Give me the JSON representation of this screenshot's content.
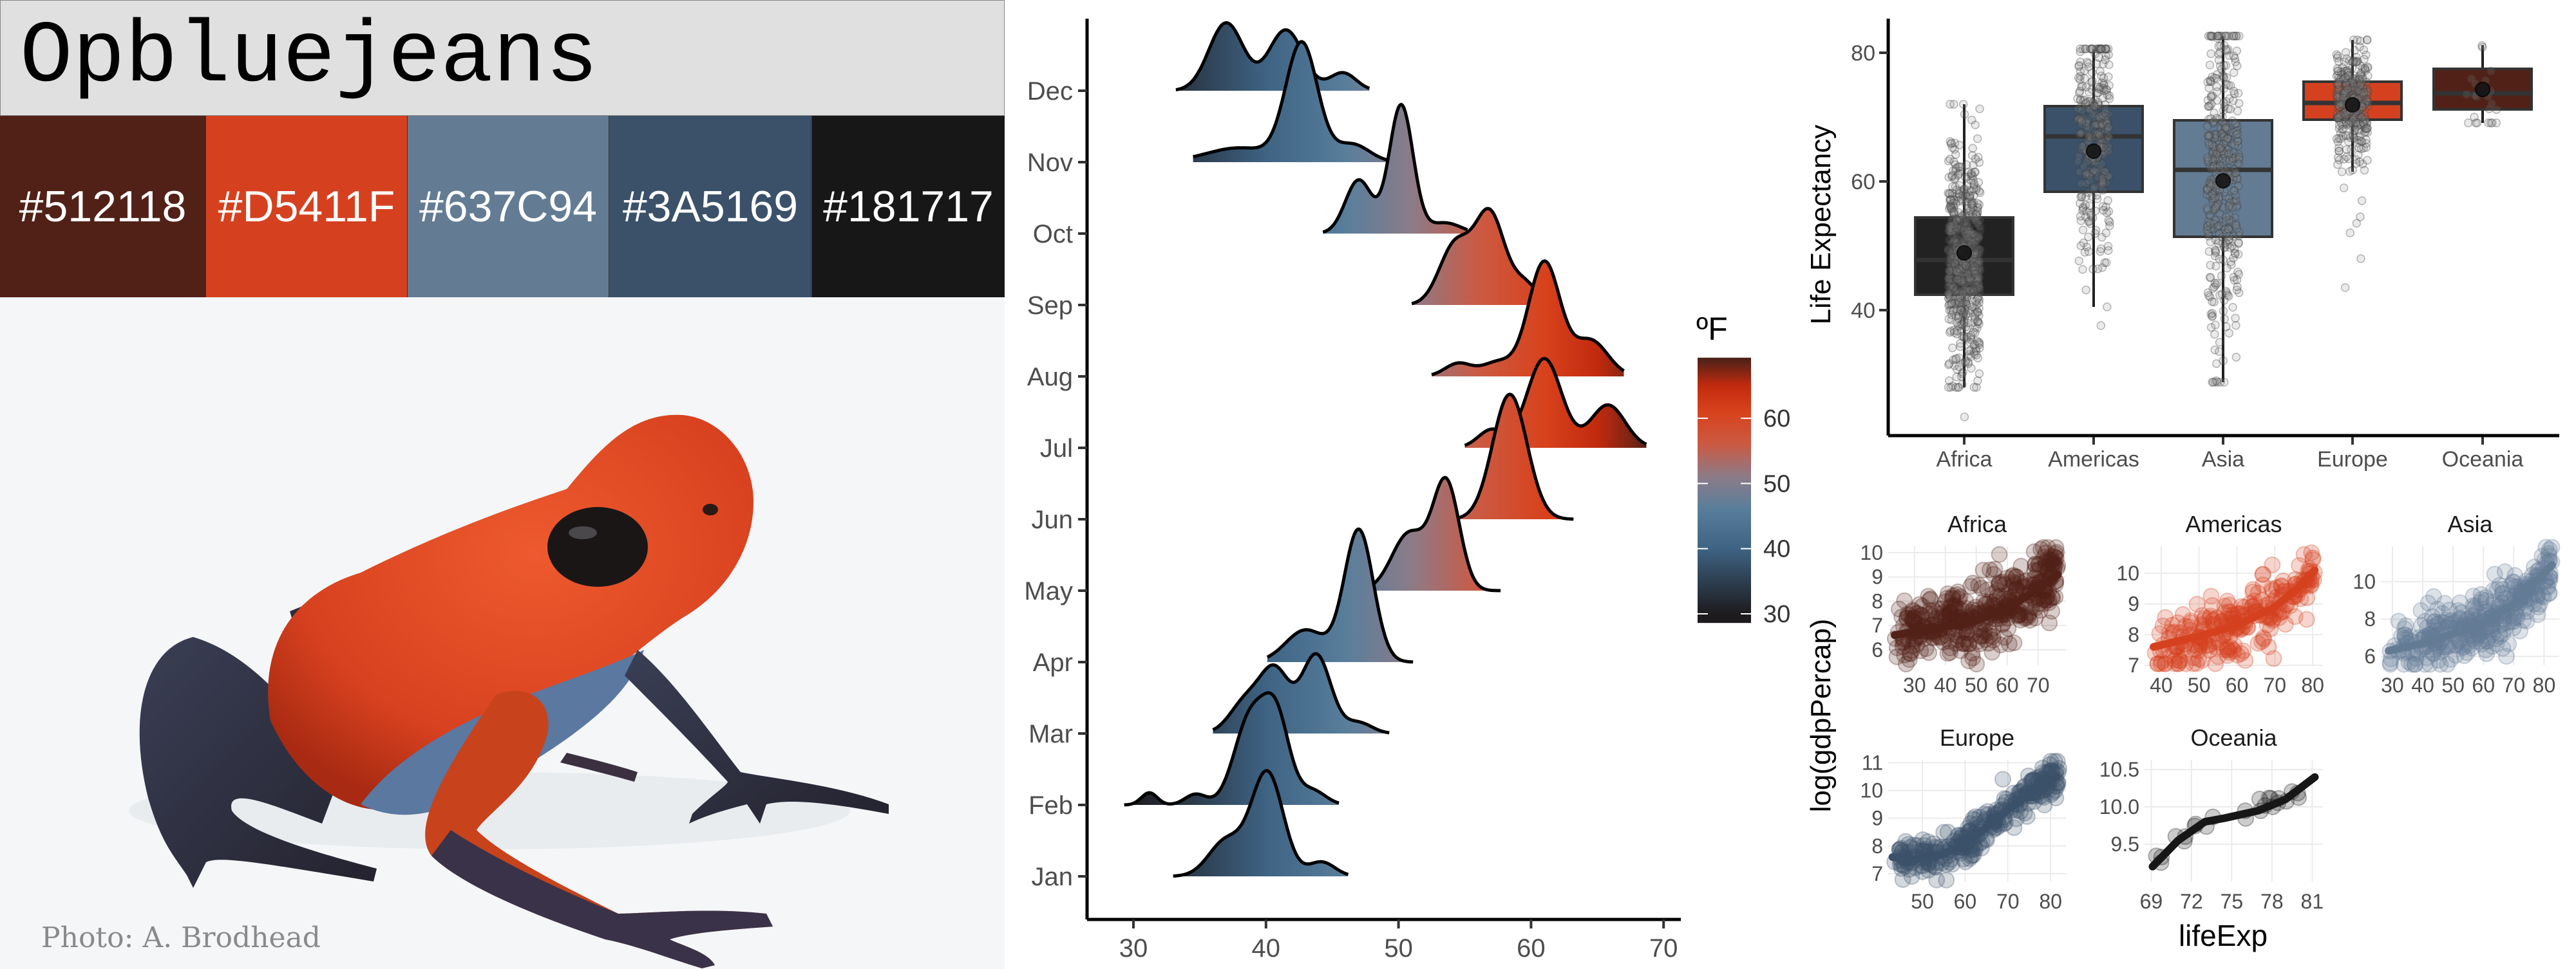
{
  "palette": {
    "title": "Opbluejeans",
    "swatches": [
      {
        "hex": "#512118",
        "label": "#512118"
      },
      {
        "hex": "#D5411F",
        "label": "#D5411F"
      },
      {
        "hex": "#637C94",
        "label": "#637C94"
      },
      {
        "hex": "#3A5169",
        "label": "#3A5169"
      },
      {
        "hex": "#181717",
        "label": "#181717"
      }
    ],
    "photo_caption": "Photo: A. Brodhead"
  },
  "chart_data": [
    {
      "type": "ridgeline",
      "title": "",
      "xlabel": "",
      "ylabel": "",
      "xlim": [
        26.5,
        71.3
      ],
      "x_ticks": [
        "30",
        "40",
        "50",
        "60",
        "70"
      ],
      "x_tick_values": [
        30,
        40,
        50,
        60,
        70
      ],
      "categories": [
        "Jan",
        "Feb",
        "Mar",
        "Apr",
        "May",
        "Jun",
        "Jul",
        "Aug",
        "Sep",
        "Oct",
        "Nov",
        "Dec"
      ],
      "series": [
        {
          "name": "Jan",
          "range": [
            33,
            46.2
          ],
          "components": [
            [
              37,
              1.3,
              0.5
            ],
            [
              40.1,
              1.2,
              1.45
            ],
            [
              44.2,
              1.0,
              0.2
            ]
          ]
        },
        {
          "name": "Feb",
          "range": [
            29.3,
            45.5
          ],
          "components": [
            [
              31.2,
              0.6,
              0.17
            ],
            [
              34.7,
              0.8,
              0.15
            ],
            [
              38.8,
              1.2,
              1.2
            ],
            [
              40.8,
              1.0,
              1.15
            ],
            [
              43.5,
              1.0,
              0.2
            ]
          ]
        },
        {
          "name": "Mar",
          "range": [
            36,
            49.3
          ],
          "components": [
            [
              38.5,
              1.2,
              0.45
            ],
            [
              40.7,
              1.1,
              0.85
            ],
            [
              43.8,
              1.1,
              1.1
            ],
            [
              47,
              1.0,
              0.15
            ]
          ]
        },
        {
          "name": "Apr",
          "range": [
            40.1,
            51.1
          ],
          "components": [
            [
              43,
              1.5,
              0.45
            ],
            [
              47,
              1.1,
              1.85
            ]
          ]
        },
        {
          "name": "May",
          "range": [
            47.5,
            57.7
          ],
          "components": [
            [
              50.8,
              1.3,
              0.8
            ],
            [
              53.6,
              1.0,
              1.5
            ]
          ]
        },
        {
          "name": "Jun",
          "range": [
            54.6,
            63.2
          ],
          "components": [
            [
              58.4,
              1.3,
              1.75
            ]
          ]
        },
        {
          "name": "Jul",
          "range": [
            55,
            68.7
          ],
          "components": [
            [
              57,
              1.0,
              0.25
            ],
            [
              61,
              1.3,
              1.25
            ],
            [
              65.8,
              1.3,
              0.6
            ]
          ]
        },
        {
          "name": "Aug",
          "range": [
            52.5,
            67
          ],
          "components": [
            [
              54.5,
              1.0,
              0.18
            ],
            [
              57.5,
              1.2,
              0.2
            ],
            [
              61,
              1.2,
              1.6
            ],
            [
              64.5,
              1.3,
              0.5
            ]
          ]
        },
        {
          "name": "Sep",
          "range": [
            51,
            61
          ],
          "components": [
            [
              54.3,
              1.2,
              0.85
            ],
            [
              56.9,
              1.1,
              1.25
            ],
            [
              59.5,
              1.0,
              0.3
            ]
          ]
        },
        {
          "name": "Oct",
          "range": [
            44.3,
            55.2
          ],
          "components": [
            [
              47,
              1.0,
              0.75
            ],
            [
              50.2,
              0.9,
              1.8
            ],
            [
              53.5,
              1.2,
              0.15
            ]
          ]
        },
        {
          "name": "Nov",
          "range": [
            34.5,
            49.5
          ],
          "components": [
            [
              38,
              2.5,
              0.2
            ],
            [
              42.7,
              1.2,
              1.65
            ],
            [
              46.5,
              1.3,
              0.25
            ]
          ]
        },
        {
          "name": "Dec",
          "range": [
            33.2,
            47.8
          ],
          "components": [
            [
              37,
              1.3,
              0.95
            ],
            [
              41.5,
              1.3,
              0.85
            ],
            [
              45.8,
              1.0,
              0.25
            ]
          ]
        }
      ],
      "legend": {
        "title": "ºF",
        "position": "right",
        "ticks": [
          "30",
          "40",
          "50",
          "60"
        ],
        "tick_values": [
          30,
          40,
          50,
          60
        ],
        "range": [
          28.6,
          69.3
        ],
        "gradient": [
          [
            30,
            "#1d1b1e"
          ],
          [
            40,
            "#3e6383"
          ],
          [
            46,
            "#587e9c"
          ],
          [
            51,
            "#8c7b88"
          ],
          [
            56,
            "#cb5a43"
          ],
          [
            61,
            "#d8421c"
          ],
          [
            65,
            "#c22a0e"
          ],
          [
            69,
            "#512118"
          ]
        ]
      }
    },
    {
      "type": "boxplot",
      "ylabel": "Life Expectancy",
      "xlabel": "",
      "ylim": [
        20.5,
        85.3
      ],
      "y_ticks": [
        "40",
        "60",
        "80"
      ],
      "y_tick_values": [
        40,
        60,
        80
      ],
      "categories": [
        "Africa",
        "Americas",
        "Asia",
        "Europe",
        "Oceania"
      ],
      "series": [
        {
          "name": "Africa",
          "fill": "#222222",
          "q1": 42.4,
          "median": 47.8,
          "q3": 54.4,
          "whisker_low": 28,
          "whisker_high": 72,
          "mean": 48.9,
          "outliers": [
            23.4
          ],
          "n": 624
        },
        {
          "name": "Americas",
          "fill": "#3A5169",
          "q1": 58.4,
          "median": 67.0,
          "q3": 71.7,
          "whisker_low": 40.5,
          "whisker_high": 80.6,
          "mean": 64.7,
          "outliers": [
            37.6
          ],
          "n": 300
        },
        {
          "name": "Asia",
          "fill": "#637C94",
          "q1": 51.4,
          "median": 61.8,
          "q3": 69.5,
          "whisker_low": 28.8,
          "whisker_high": 82.6,
          "mean": 60.1,
          "outliers": [],
          "n": 396
        },
        {
          "name": "Europe",
          "fill": "#D5411F",
          "q1": 69.6,
          "median": 72.2,
          "q3": 75.5,
          "whisker_low": 61.5,
          "whisker_high": 82,
          "mean": 71.9,
          "outliers": [
            59,
            57,
            54.5,
            53.5,
            52,
            48,
            43.5
          ],
          "n": 360
        },
        {
          "name": "Oceania",
          "fill": "#512118",
          "q1": 71.2,
          "median": 73.7,
          "q3": 77.5,
          "whisker_low": 69.1,
          "whisker_high": 81.2,
          "mean": 74.3,
          "outliers": [],
          "n": 24
        }
      ]
    },
    {
      "type": "scatter",
      "facets": true,
      "ylabel": "log(gdpPercap)",
      "xlabel": "lifeExp",
      "panels": [
        {
          "title": "Africa",
          "color": "#512118",
          "xlim": [
            21.5,
            79
          ],
          "ylim": [
            5.36,
            10.26
          ],
          "x_ticks": [
            "30",
            "40",
            "50",
            "60",
            "70"
          ],
          "x_tick_values": [
            30,
            40,
            50,
            60,
            70
          ],
          "y_ticks": [
            "6",
            "7",
            "8",
            "9",
            "10"
          ],
          "y_tick_values": [
            6,
            7,
            8,
            9,
            10
          ],
          "x_range": [
            23.6,
            76.4
          ],
          "spread": 0.75,
          "n": 420,
          "smooth": [
            [
              23.6,
              6.6
            ],
            [
              35,
              6.85
            ],
            [
              45,
              7.05
            ],
            [
              50,
              7.2
            ],
            [
              60,
              7.7
            ],
            [
              70,
              8.5
            ],
            [
              76.4,
              9.1
            ]
          ]
        },
        {
          "title": "Americas",
          "color": "#D5411F",
          "xlim": [
            35.6,
            82.7
          ],
          "ylim": [
            7,
            10.88
          ],
          "x_ticks": [
            "40",
            "50",
            "60",
            "70",
            "80"
          ],
          "x_tick_values": [
            40,
            50,
            60,
            70,
            80
          ],
          "y_ticks": [
            "7",
            "8",
            "9",
            "10"
          ],
          "y_tick_values": [
            7,
            8,
            9,
            10
          ],
          "x_range": [
            38,
            80.6
          ],
          "spread": 0.5,
          "n": 260,
          "smooth": [
            [
              38,
              7.6
            ],
            [
              50,
              7.95
            ],
            [
              60,
              8.3
            ],
            [
              70,
              8.9
            ],
            [
              76,
              9.5
            ],
            [
              80.5,
              10.1
            ]
          ]
        },
        {
          "title": "Asia",
          "color": "#637C94",
          "xlim": [
            26.2,
            85
          ],
          "ylim": [
            5.52,
            11.9
          ],
          "x_ticks": [
            "30",
            "40",
            "50",
            "60",
            "70",
            "80"
          ],
          "x_tick_values": [
            30,
            40,
            50,
            60,
            70,
            80
          ],
          "y_ticks": [
            "6",
            "8",
            "10"
          ],
          "y_tick_values": [
            6,
            8,
            10
          ],
          "x_range": [
            28.8,
            82.6
          ],
          "spread": 0.85,
          "n": 340,
          "smooth": [
            [
              28.8,
              6.3
            ],
            [
              40,
              6.7
            ],
            [
              50,
              7.2
            ],
            [
              60,
              7.8
            ],
            [
              70,
              8.8
            ],
            [
              82.6,
              10.9
            ]
          ]
        },
        {
          "title": "Europe",
          "color": "#3A5169",
          "xlim": [
            42,
            83.6
          ],
          "ylim": [
            6.72,
            11.1
          ],
          "x_ticks": [
            "50",
            "60",
            "70",
            "80"
          ],
          "x_tick_values": [
            50,
            60,
            70,
            80
          ],
          "y_ticks": [
            "7",
            "8",
            "9",
            "10",
            "11"
          ],
          "y_tick_values": [
            7,
            8,
            9,
            10,
            11
          ],
          "x_range": [
            43.5,
            82
          ],
          "spread": 0.35,
          "n": 300,
          "smooth": [
            [
              43,
              7.6
            ],
            [
              48,
              7.5
            ],
            [
              55,
              7.7
            ],
            [
              62,
              8.3
            ],
            [
              70,
              9.3
            ],
            [
              76,
              10.0
            ],
            [
              81.5,
              10.5
            ]
          ]
        },
        {
          "title": "Oceania",
          "color": "#181717",
          "xlim": [
            68.5,
            81.8
          ],
          "ylim": [
            9.0,
            10.63
          ],
          "x_ticks": [
            "69",
            "72",
            "75",
            "78",
            "81"
          ],
          "x_tick_values": [
            69,
            72,
            75,
            78,
            81
          ],
          "y_ticks": [
            "9.5",
            "10.0",
            "10.5"
          ],
          "y_tick_values": [
            9.5,
            10.0,
            10.5
          ],
          "x_range": [
            69.1,
            81.2
          ],
          "spread": 0.06,
          "n": 24,
          "smooth": [
            [
              69.1,
              9.2
            ],
            [
              71,
              9.55
            ],
            [
              73,
              9.8
            ],
            [
              74.5,
              9.85
            ],
            [
              77,
              9.95
            ],
            [
              79,
              10.1
            ],
            [
              81.2,
              10.4
            ]
          ]
        }
      ]
    }
  ]
}
